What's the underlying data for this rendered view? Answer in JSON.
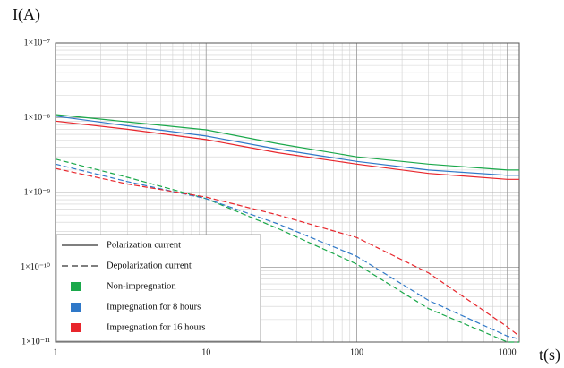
{
  "chart_data": {
    "type": "line",
    "y_label": "I(A)",
    "x_label": "t(s)",
    "xscale": "log",
    "yscale": "log",
    "grid": true,
    "xlim": [
      1,
      1200
    ],
    "ylim": [
      1e-11,
      1e-07
    ],
    "xticks": [
      1,
      10,
      100,
      1000
    ],
    "yticks": [
      {
        "value": 1e-07,
        "label": "1×10⁻⁷"
      },
      {
        "value": 1e-08,
        "label": "1×10⁻⁸"
      },
      {
        "value": 1e-09,
        "label": "1×10⁻⁹"
      },
      {
        "value": 1e-10,
        "label": "1×10⁻¹⁰"
      },
      {
        "value": 1e-11,
        "label": "1×10⁻¹¹"
      }
    ],
    "x": [
      1,
      3,
      10,
      30,
      100,
      300,
      1000,
      1200
    ],
    "legend": {
      "position": "lower left",
      "styles": [
        {
          "label": "Polarization current",
          "dash": false
        },
        {
          "label": "Depolarization current",
          "dash": true
        }
      ],
      "colors": [
        {
          "label": "Non-impregnation",
          "color": "#1aa84a"
        },
        {
          "label": "Impregnation for 8 hours",
          "color": "#2f78c8"
        },
        {
          "label": "Impregnation for 16 hours",
          "color": "#e8262c"
        }
      ]
    },
    "series": [
      {
        "color": "#1aa84a",
        "dash": false,
        "values": [
          1.1e-08,
          8.8e-09,
          6.9e-09,
          4.5e-09,
          3e-09,
          2.4e-09,
          2e-09,
          2e-09
        ]
      },
      {
        "color": "#2f78c8",
        "dash": false,
        "values": [
          1.05e-08,
          7.8e-09,
          5.7e-09,
          3.8e-09,
          2.6e-09,
          2e-09,
          1.7e-09,
          1.7e-09
        ]
      },
      {
        "color": "#e8262c",
        "dash": false,
        "values": [
          9e-09,
          7e-09,
          5.1e-09,
          3.4e-09,
          2.4e-09,
          1.8e-09,
          1.5e-09,
          1.5e-09
        ]
      },
      {
        "color": "#1aa84a",
        "dash": true,
        "values": [
          2.8e-09,
          1.6e-09,
          8.3e-10,
          3.3e-10,
          1.1e-10,
          2.8e-11,
          1e-11,
          1e-11
        ]
      },
      {
        "color": "#2f78c8",
        "dash": true,
        "values": [
          2.4e-09,
          1.4e-09,
          8.3e-10,
          3.8e-10,
          1.4e-10,
          3.6e-11,
          1.2e-11,
          1.1e-11
        ]
      },
      {
        "color": "#e8262c",
        "dash": true,
        "values": [
          2.1e-09,
          1.3e-09,
          8.7e-10,
          5e-10,
          2.5e-10,
          8.4e-11,
          1.6e-11,
          1.2e-11
        ]
      }
    ]
  }
}
